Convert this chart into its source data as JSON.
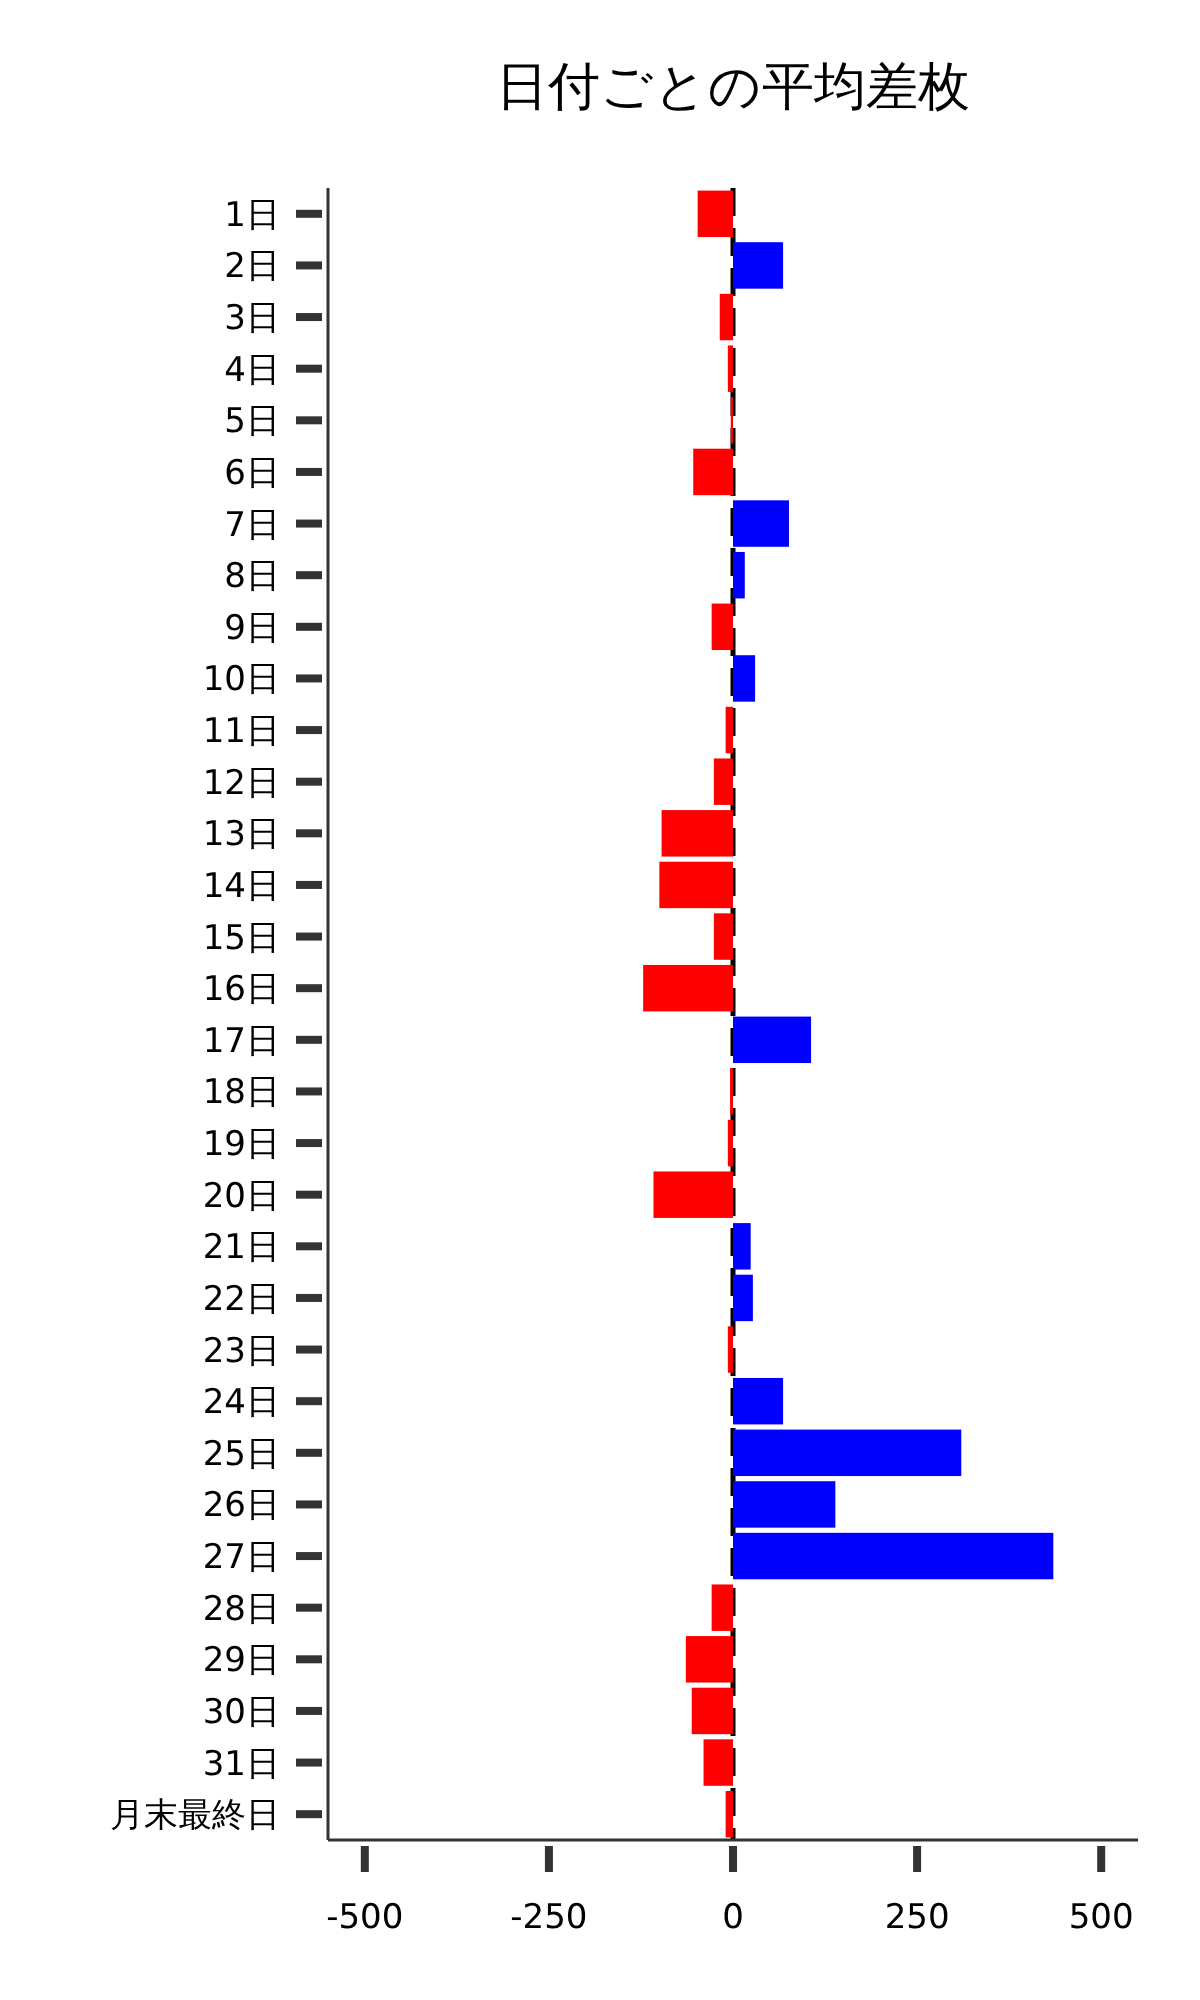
{
  "chart_data": {
    "type": "bar",
    "orientation": "horizontal",
    "title": "日付ごとの平均差枚",
    "categories": [
      "1日",
      "2日",
      "3日",
      "4日",
      "5日",
      "6日",
      "7日",
      "8日",
      "9日",
      "10日",
      "11日",
      "12日",
      "13日",
      "14日",
      "15日",
      "16日",
      "17日",
      "18日",
      "19日",
      "20日",
      "21日",
      "22日",
      "23日",
      "24日",
      "25日",
      "26日",
      "27日",
      "28日",
      "29日",
      "30日",
      "31日",
      "月末最終日"
    ],
    "values": [
      -48,
      68,
      -18,
      -7,
      -3,
      -54,
      76,
      16,
      -29,
      30,
      -10,
      -26,
      -97,
      -100,
      -26,
      -122,
      106,
      -4,
      -7,
      -108,
      24,
      27,
      -7,
      68,
      310,
      139,
      435,
      -29,
      -64,
      -56,
      -40,
      -10
    ],
    "colors": [
      "#ff0000",
      "#0000ff",
      "#ff0000",
      "#ff0000",
      "#ff0000",
      "#ff0000",
      "#0000ff",
      "#0000ff",
      "#ff0000",
      "#0000ff",
      "#ff0000",
      "#ff0000",
      "#ff0000",
      "#ff0000",
      "#ff0000",
      "#ff0000",
      "#0000ff",
      "#ff0000",
      "#ff0000",
      "#ff0000",
      "#0000ff",
      "#0000ff",
      "#ff0000",
      "#0000ff",
      "#0000ff",
      "#0000ff",
      "#0000ff",
      "#ff0000",
      "#ff0000",
      "#ff0000",
      "#ff0000",
      "#ff0000"
    ],
    "xlim": [
      -550,
      550
    ],
    "xticks": [
      -500,
      -250,
      0,
      250,
      500
    ],
    "ref_lines": [
      {
        "axis": "x",
        "value": 0,
        "color": "#000000",
        "line_style": "dashed"
      }
    ]
  }
}
